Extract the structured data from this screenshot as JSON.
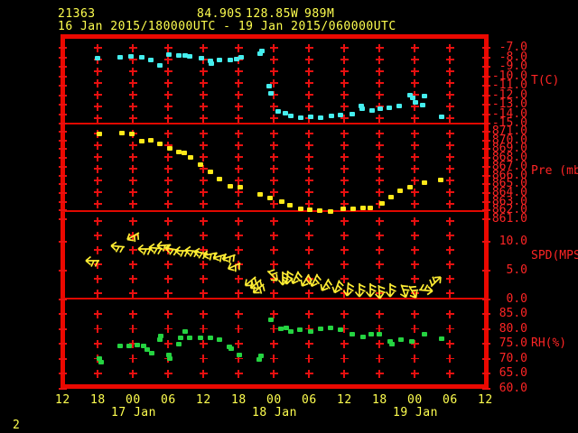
{
  "header": {
    "station_id": "21363",
    "latitude": "84.90S",
    "longitude": "128.85W",
    "elevation": "989M",
    "period": "16 Jan 2015/180000UTC - 19 Jan 2015/060000UTC"
  },
  "footer": {
    "page_number": "2"
  },
  "x_axis": {
    "hour_labels": [
      "12",
      "18",
      "00",
      "06",
      "12",
      "18",
      "00",
      "06",
      "12",
      "18",
      "00",
      "06",
      "12"
    ],
    "date_labels": [
      "17 Jan",
      "18 Jan",
      "19 Jan"
    ]
  },
  "panels": [
    {
      "id": "temperature",
      "unit_label": "T(C)",
      "axis_labels": [
        "-7.0",
        "-8.0",
        "-9.0",
        "-10.0",
        "-11.0",
        "-12.0",
        "-13.0",
        "-14.0",
        "-15.0"
      ]
    },
    {
      "id": "pressure",
      "unit_label": "Pre (mb)",
      "axis_labels": [
        "871.0",
        "870.0",
        "869.0",
        "868.0",
        "867.0",
        "866.0",
        "865.0",
        "864.0",
        "863.0",
        "862.0",
        "861.0"
      ]
    },
    {
      "id": "wind",
      "unit_label": "SPD(MPS)",
      "axis_labels": [
        "10.0",
        "5.0",
        "0.0"
      ]
    },
    {
      "id": "humidity",
      "unit_label": "RH(%)",
      "axis_labels": [
        "85.0",
        "80.0",
        "75.0",
        "70.0",
        "65.0",
        "60.0"
      ]
    }
  ],
  "colors": {
    "background": "#000000",
    "frame_red": "#EB0800",
    "label_red": "#FF2525",
    "text_yellow": "#FFFF4F",
    "temperature_cyan": "#45EDED",
    "pressure_yellow": "#FFE81A",
    "wind_yellow": "#FFEE33",
    "humidity_green": "#25D341"
  },
  "chart_data": [
    {
      "type": "scatter",
      "panel": "temperature",
      "name": "Temperature",
      "ylabel": "T(C)",
      "x_unit": "hours since 16 Jan 2015 12:00 UTC",
      "xlim": [
        0,
        72
      ],
      "ylim": [
        -15.5,
        -6.5
      ],
      "marker_color": "#45EDED",
      "x": [
        6.0,
        9.8,
        11.7,
        13.5,
        15.1,
        16.6,
        18.2,
        19.8,
        20.9,
        21.7,
        23.7,
        25.2,
        25.4,
        26.8,
        28.6,
        29.7,
        30.5,
        33.7,
        34.0,
        35.2,
        35.5,
        36.8,
        38.0,
        38.9,
        40.6,
        42.3,
        44.0,
        45.8,
        47.4,
        49.4,
        50.9,
        51.1,
        52.8,
        54.2,
        55.7,
        57.4,
        59.2,
        59.7,
        60.2,
        61.4,
        61.7,
        64.6
      ],
      "y": [
        -8.1,
        -8.0,
        -7.9,
        -8.0,
        -8.3,
        -8.9,
        -7.7,
        -7.8,
        -7.8,
        -7.9,
        -8.1,
        -8.4,
        -8.7,
        -8.3,
        -8.3,
        -8.2,
        -8.0,
        -7.6,
        -7.3,
        -11.0,
        -11.8,
        -13.7,
        -13.9,
        -14.2,
        -14.4,
        -14.3,
        -14.4,
        -14.2,
        -14.1,
        -14.0,
        -13.1,
        -13.4,
        -13.6,
        -13.4,
        -13.3,
        -13.1,
        -12.0,
        -12.3,
        -12.8,
        -13.0,
        -12.1,
        -14.3
      ]
    },
    {
      "type": "scatter",
      "panel": "pressure",
      "name": "Station pressure",
      "ylabel": "Pre (mb)",
      "x_unit": "hours since 16 Jan 2015 12:00 UTC",
      "xlim": [
        0,
        72
      ],
      "ylim": [
        860.5,
        871.5
      ],
      "marker_color": "#FFE81A",
      "x": [
        6.3,
        10.2,
        11.8,
        13.5,
        15.1,
        16.6,
        18.3,
        19.8,
        20.8,
        21.8,
        23.5,
        25.2,
        26.8,
        28.6,
        30.3,
        33.7,
        35.4,
        37.4,
        38.8,
        40.6,
        42.2,
        43.8,
        45.7,
        47.8,
        49.5,
        51.2,
        52.5,
        54.5,
        56.0,
        57.5,
        59.2,
        61.7,
        64.5
      ],
      "y": [
        870.7,
        870.8,
        870.7,
        869.9,
        870.0,
        869.6,
        869.1,
        868.7,
        868.6,
        868.1,
        867.2,
        866.4,
        865.6,
        864.8,
        864.7,
        863.8,
        863.4,
        863.0,
        862.6,
        862.2,
        862.1,
        862.0,
        861.9,
        862.2,
        862.2,
        862.3,
        862.3,
        862.8,
        863.5,
        864.2,
        864.7,
        865.2,
        865.5
      ]
    },
    {
      "type": "wind_barbs",
      "panel": "wind",
      "name": "Wind speed and direction",
      "ylabel": "SPD(MPS)",
      "x_unit": "hours since 16 Jan 2015 12:00 UTC",
      "xlim": [
        0,
        72
      ],
      "ylim": [
        0,
        15
      ],
      "marker_color": "#FFEE33",
      "x": [
        5.1,
        9.4,
        12.0,
        14.0,
        15.8,
        17.2,
        18.6,
        20.3,
        22.0,
        23.5,
        25.1,
        26.8,
        28.3,
        29.2,
        32.0,
        32.9,
        33.4,
        35.8,
        37.5,
        38.3,
        39.7,
        41.4,
        42.9,
        44.8,
        46.8,
        48.6,
        50.6,
        52.5,
        54.0,
        55.8,
        58.2,
        59.7,
        62.0,
        63.7
      ],
      "speed": [
        6.7,
        9.2,
        11.0,
        8.8,
        8.9,
        9.4,
        8.8,
        8.5,
        8.5,
        8.1,
        7.8,
        7.5,
        7.3,
        5.8,
        3.1,
        2.6,
        1.8,
        4.0,
        3.6,
        3.7,
        3.7,
        3.2,
        3.2,
        2.4,
        2.1,
        1.7,
        1.5,
        1.5,
        1.2,
        1.5,
        1.3,
        1.2,
        1.5,
        3.1
      ],
      "direction_deg_screen": [
        180,
        185,
        150,
        180,
        185,
        175,
        190,
        180,
        185,
        188,
        168,
        165,
        162,
        155,
        140,
        140,
        140,
        45,
        90,
        95,
        115,
        120,
        115,
        120,
        110,
        95,
        90,
        90,
        85,
        90,
        70,
        60,
        5,
        315
      ]
    },
    {
      "type": "scatter",
      "panel": "humidity",
      "name": "Relative humidity",
      "ylabel": "RH(%)",
      "x_unit": "hours since 16 Jan 2015 12:00 UTC",
      "xlim": [
        0,
        72
      ],
      "ylim": [
        60,
        87
      ],
      "marker_color": "#25D341",
      "x": [
        6.3,
        6.6,
        9.8,
        11.4,
        12.8,
        13.8,
        14.5,
        15.2,
        16.6,
        16.8,
        18.2,
        18.3,
        19.8,
        20.2,
        20.9,
        21.7,
        23.5,
        25.2,
        26.8,
        28.5,
        28.8,
        30.2,
        33.5,
        33.8,
        35.5,
        37.2,
        38.2,
        38.9,
        40.5,
        42.3,
        44.0,
        45.7,
        47.4,
        49.4,
        51.2,
        52.6,
        54.0,
        55.8,
        56.2,
        57.7,
        59.5,
        61.7,
        64.6
      ],
      "y": [
        70.2,
        69.0,
        74.2,
        74.2,
        74.5,
        74.2,
        73.0,
        72.0,
        76.3,
        77.5,
        71.4,
        70.2,
        74.8,
        76.9,
        79.0,
        76.9,
        76.9,
        76.9,
        76.3,
        73.9,
        73.3,
        71.4,
        69.9,
        71.1,
        82.9,
        79.9,
        80.2,
        79.0,
        79.6,
        79.0,
        79.9,
        80.2,
        79.6,
        78.1,
        77.2,
        78.1,
        78.1,
        75.7,
        74.8,
        76.3,
        75.7,
        78.1,
        76.6
      ]
    }
  ]
}
